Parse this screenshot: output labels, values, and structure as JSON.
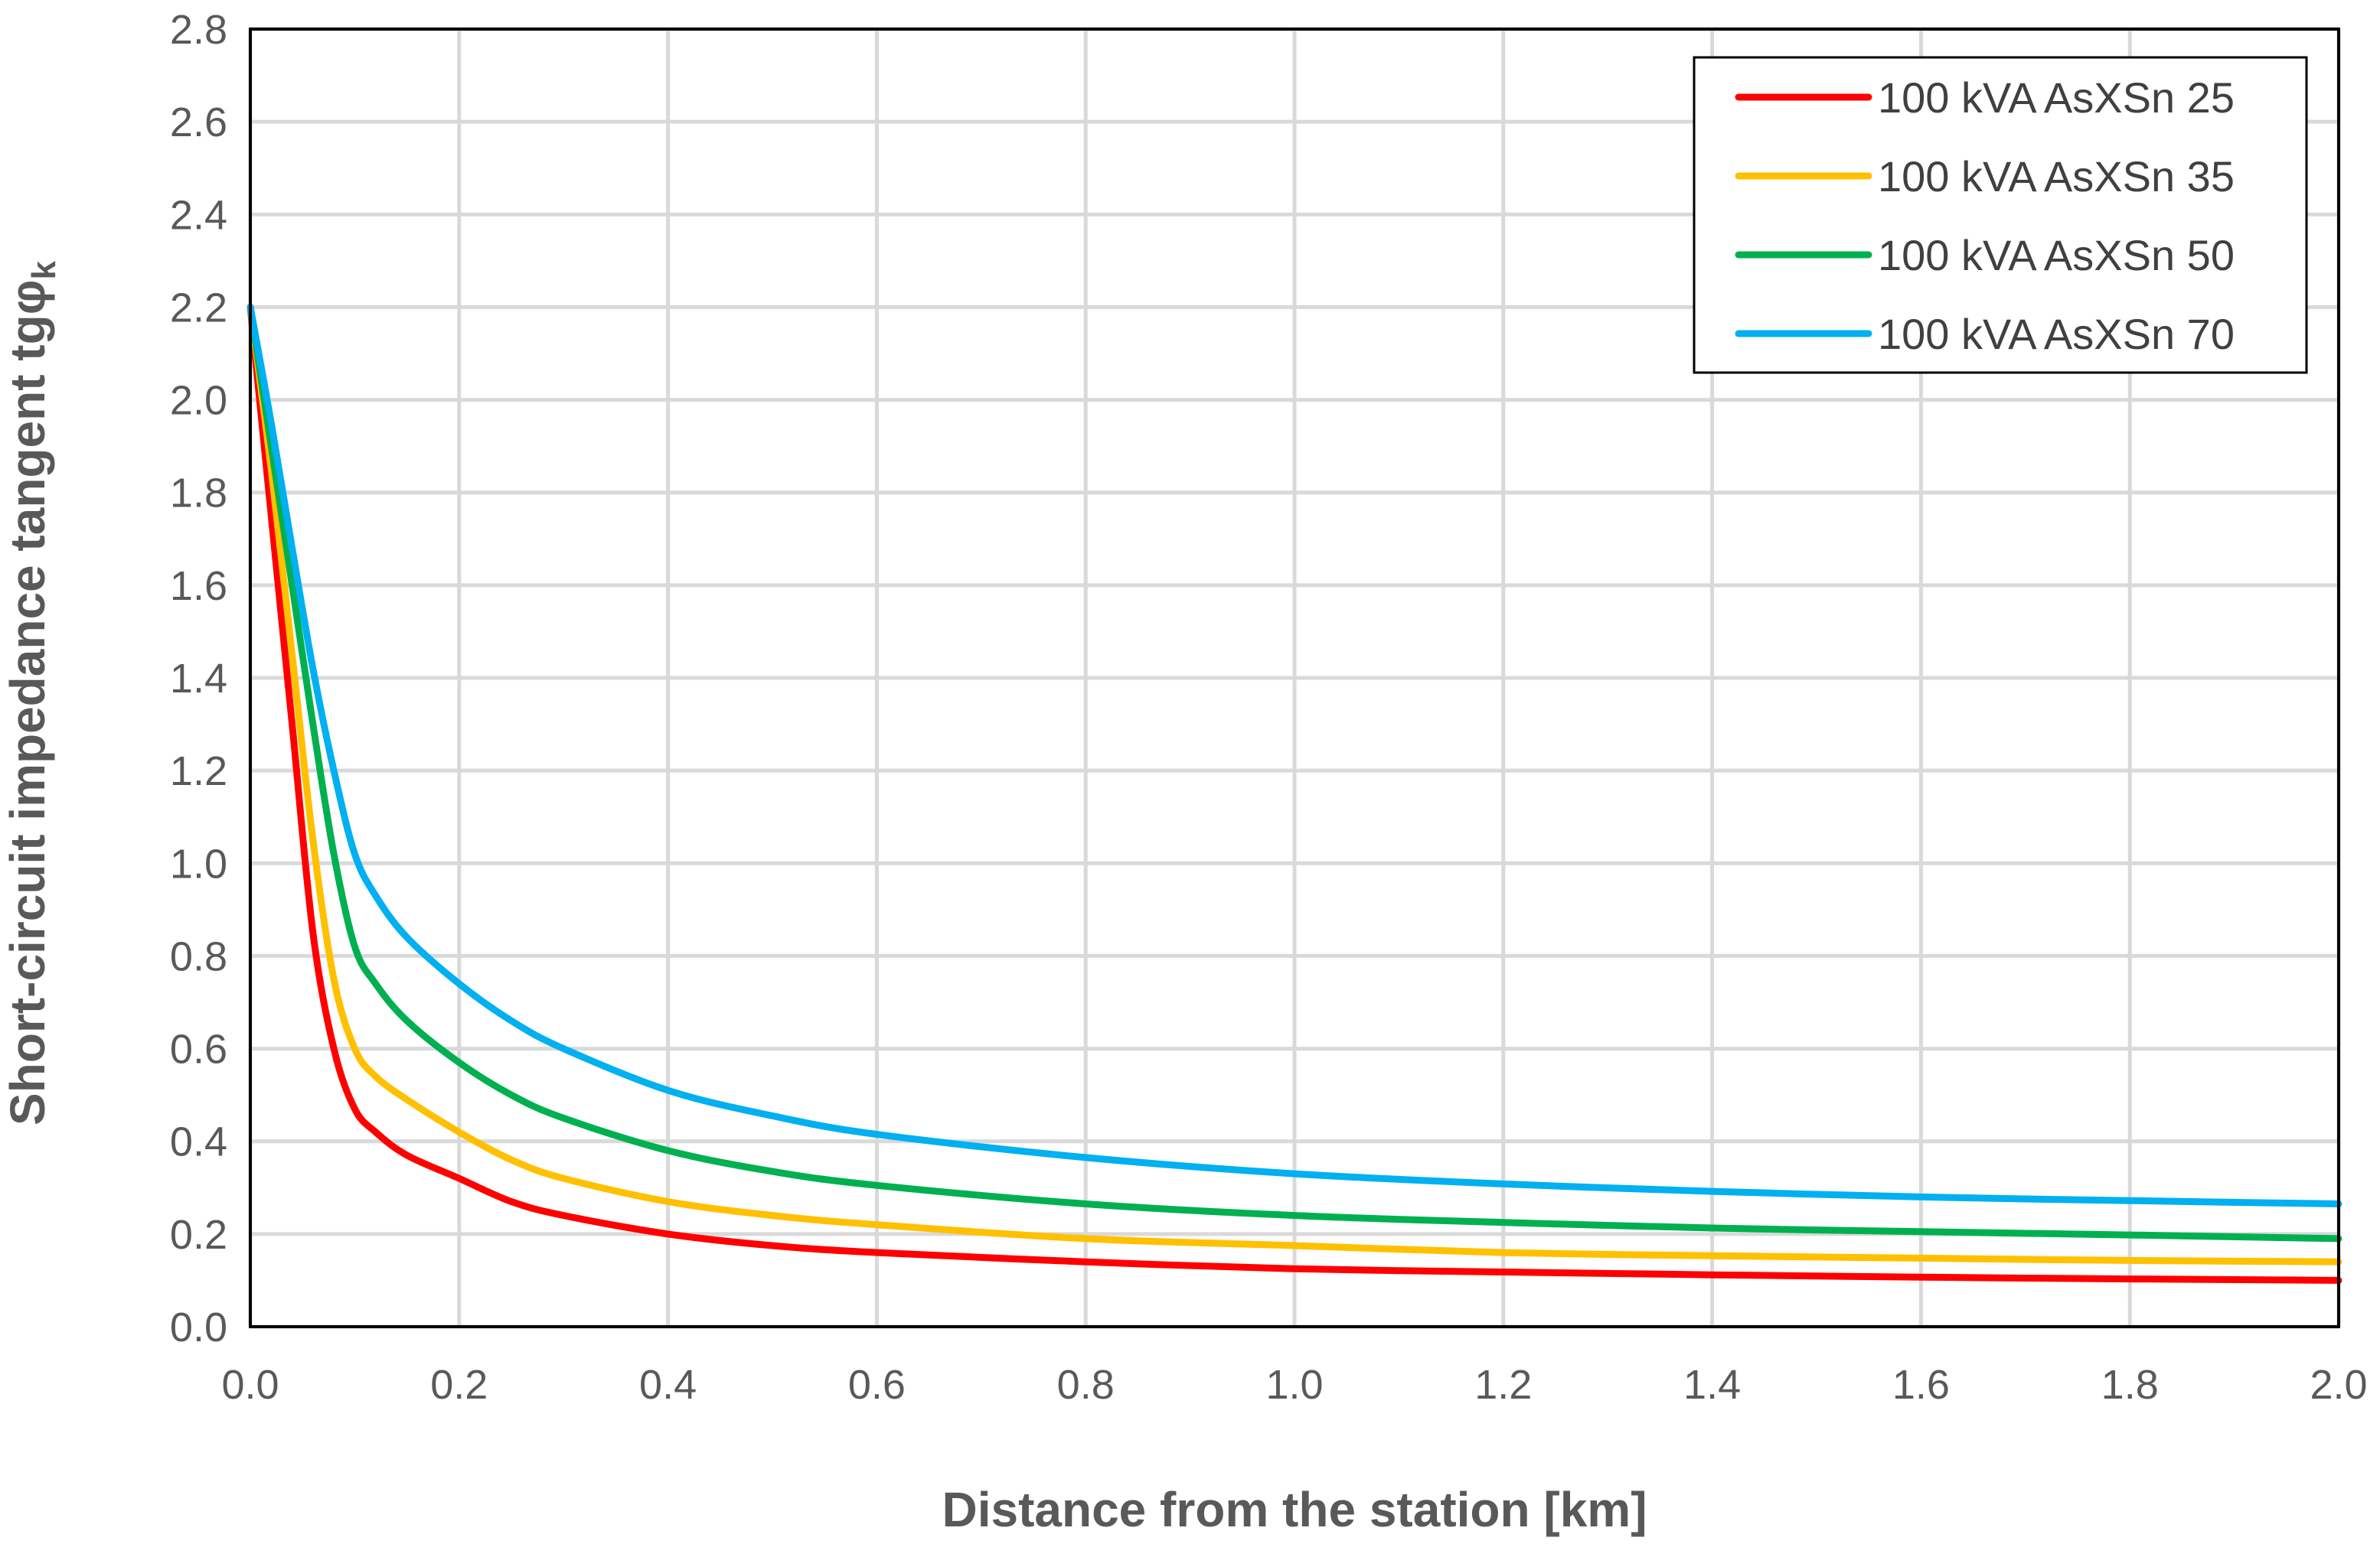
{
  "chart_data": {
    "type": "line",
    "title": "",
    "xlabel": "Distance from the station [km]",
    "ylabel": "Short-circuit impedance tangent tgφk",
    "ylabel_main": "Short-circuit impedance tangent tgφ",
    "ylabel_sub": "k",
    "xlim": [
      0,
      2
    ],
    "ylim": [
      0,
      2.8
    ],
    "x_ticks": [
      "0.0",
      "0.2",
      "0.4",
      "0.6",
      "0.8",
      "1.0",
      "1.2",
      "1.4",
      "1.6",
      "1.8",
      "2.0"
    ],
    "y_ticks": [
      "0.0",
      "0.2",
      "0.4",
      "0.6",
      "0.8",
      "1.0",
      "1.2",
      "1.4",
      "1.6",
      "1.8",
      "2.0",
      "2.2",
      "2.4",
      "2.6",
      "2.8"
    ],
    "grid": true,
    "legend_position": "top-right",
    "series": [
      {
        "name": "100 kVA AsXSn 25",
        "color": "#ff0000",
        "x": [
          0,
          0.02,
          0.04,
          0.06,
          0.08,
          0.1,
          0.12,
          0.15,
          0.2,
          0.25,
          0.3,
          0.4,
          0.5,
          0.6,
          0.8,
          1.0,
          1.2,
          1.4,
          1.6,
          1.8,
          2.0
        ],
        "y": [
          2.2,
          1.75,
          1.3,
          0.85,
          0.6,
          0.47,
          0.42,
          0.37,
          0.32,
          0.27,
          0.24,
          0.2,
          0.175,
          0.16,
          0.14,
          0.125,
          0.118,
          0.112,
          0.107,
          0.103,
          0.1
        ]
      },
      {
        "name": "100 kVA AsXSn 35",
        "color": "#ffc000",
        "x": [
          0,
          0.02,
          0.04,
          0.06,
          0.08,
          0.1,
          0.12,
          0.15,
          0.2,
          0.25,
          0.3,
          0.4,
          0.5,
          0.6,
          0.8,
          1.0,
          1.2,
          1.4,
          1.6,
          1.8,
          2.0
        ],
        "y": [
          2.2,
          1.85,
          1.45,
          1.05,
          0.75,
          0.6,
          0.54,
          0.49,
          0.42,
          0.36,
          0.32,
          0.27,
          0.24,
          0.22,
          0.19,
          0.175,
          0.16,
          0.153,
          0.148,
          0.143,
          0.14
        ]
      },
      {
        "name": "100 kVA AsXSn 50",
        "color": "#00b050",
        "x": [
          0,
          0.02,
          0.04,
          0.06,
          0.08,
          0.1,
          0.12,
          0.15,
          0.2,
          0.25,
          0.3,
          0.4,
          0.5,
          0.6,
          0.8,
          1.0,
          1.2,
          1.4,
          1.6,
          1.8,
          2.0
        ],
        "y": [
          2.2,
          1.9,
          1.6,
          1.3,
          1.02,
          0.82,
          0.74,
          0.66,
          0.57,
          0.5,
          0.45,
          0.38,
          0.335,
          0.305,
          0.265,
          0.24,
          0.225,
          0.213,
          0.205,
          0.198,
          0.19
        ]
      },
      {
        "name": "100 kVA AsXSn 70",
        "color": "#00b0f0",
        "x": [
          0,
          0.02,
          0.04,
          0.06,
          0.08,
          0.1,
          0.12,
          0.15,
          0.2,
          0.25,
          0.3,
          0.4,
          0.5,
          0.6,
          0.8,
          1.0,
          1.2,
          1.4,
          1.6,
          1.8,
          2.0
        ],
        "y": [
          2.2,
          1.95,
          1.68,
          1.42,
          1.2,
          1.02,
          0.93,
          0.84,
          0.74,
          0.66,
          0.6,
          0.51,
          0.455,
          0.415,
          0.365,
          0.33,
          0.308,
          0.292,
          0.28,
          0.272,
          0.265
        ]
      }
    ]
  }
}
